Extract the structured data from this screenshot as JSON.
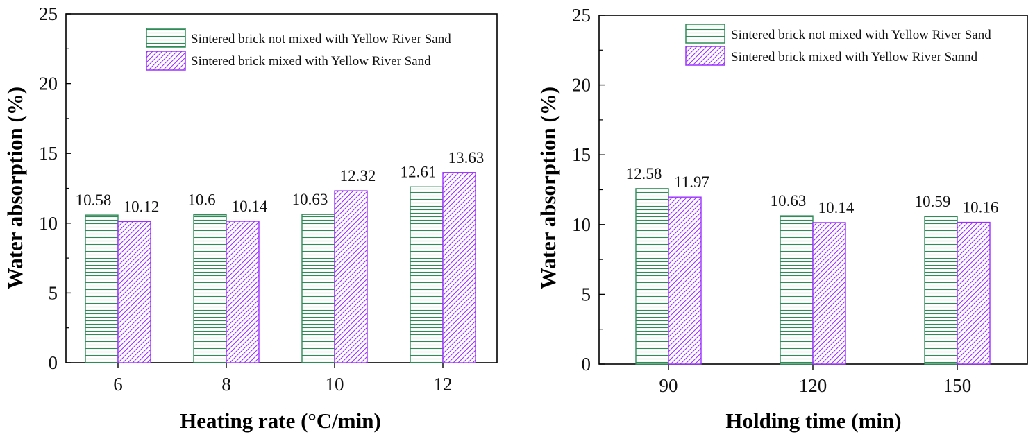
{
  "chart_data": [
    {
      "type": "bar",
      "categories": [
        "6",
        "8",
        "10",
        "12"
      ],
      "series": [
        {
          "name": "Sintered brick not mixed with Yellow River Sand",
          "values": [
            10.58,
            10.6,
            10.63,
            12.61
          ],
          "labels": [
            "10.58",
            "10.6",
            "10.63",
            "12.61"
          ]
        },
        {
          "name": "Sintered brick mixed with Yellow River Sand",
          "values": [
            10.12,
            10.14,
            12.32,
            13.63
          ],
          "labels": [
            "10.12",
            "10.14",
            "12.32",
            "13.63"
          ]
        }
      ],
      "xlabel": "Heating rate (°C/min)",
      "ylabel": "Water absorption (%)",
      "ylim": [
        0,
        25
      ],
      "yticks": [
        0,
        5,
        10,
        15,
        20,
        25
      ],
      "legend": "top-right"
    },
    {
      "type": "bar",
      "categories": [
        "90",
        "120",
        "150"
      ],
      "series": [
        {
          "name": "Sintered brick not mixed with Yellow River Sand",
          "values": [
            12.58,
            10.63,
            10.59
          ],
          "labels": [
            "12.58",
            "10.63",
            "10.59"
          ]
        },
        {
          "name": "Sintered brick mixed with Yellow River Sannd",
          "values": [
            11.97,
            10.14,
            10.16
          ],
          "labels": [
            "11.97",
            "10.14",
            "10.16"
          ]
        }
      ],
      "xlabel": "Holding time (min)",
      "ylabel": "Water absorption (%)",
      "ylim": [
        0,
        25
      ],
      "yticks": [
        0,
        5,
        10,
        15,
        20,
        25
      ],
      "legend": "top-right"
    }
  ],
  "colors": {
    "series_0": "#2e8b57",
    "series_1": "#9b30ff",
    "axis": "#000000"
  }
}
